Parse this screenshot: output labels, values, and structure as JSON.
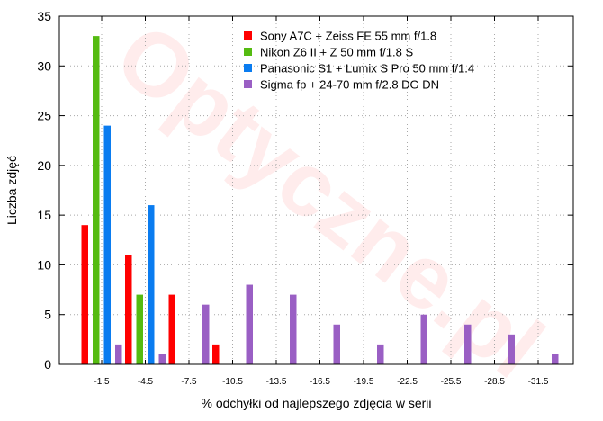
{
  "chart_data": {
    "type": "bar",
    "xlabel": "% odchyłki od najlepszego zdjęcia w serii",
    "ylabel": "Liczba zdjęć",
    "ylim": [
      0,
      35
    ],
    "yticks": [
      0,
      5,
      10,
      15,
      20,
      25,
      30,
      35
    ],
    "grid": true,
    "legend_position": "top-right",
    "watermark": "Optyczne.pl",
    "categories": [
      "-1.5",
      "-4.5",
      "-7.5",
      "-10.5",
      "-13.5",
      "-16.5",
      "-19.5",
      "-22.5",
      "-25.5",
      "-28.5",
      "-31.5"
    ],
    "series": [
      {
        "name": "Sony A7C + Zeiss FE 55 mm f/1.8",
        "color": "#ff0000",
        "values": [
          14,
          11,
          7,
          2,
          0,
          0,
          0,
          0,
          0,
          0,
          0
        ]
      },
      {
        "name": "Nikon Z6 II + Z 50 mm f/1.8 S",
        "color": "#55bb11",
        "values": [
          33,
          7,
          0,
          0,
          0,
          0,
          0,
          0,
          0,
          0,
          0
        ]
      },
      {
        "name": "Panasonic S1 + Lumix S Pro 50 mm f/1.4",
        "color": "#0a7cf0",
        "values": [
          24,
          16,
          0,
          0,
          0,
          0,
          0,
          0,
          0,
          0,
          0
        ]
      },
      {
        "name": "Sigma fp + 24-70 mm f/2.8 DG DN",
        "color": "#9a5fc4",
        "values": [
          2,
          1,
          6,
          8,
          7,
          4,
          2,
          5,
          4,
          3,
          1
        ]
      }
    ]
  }
}
